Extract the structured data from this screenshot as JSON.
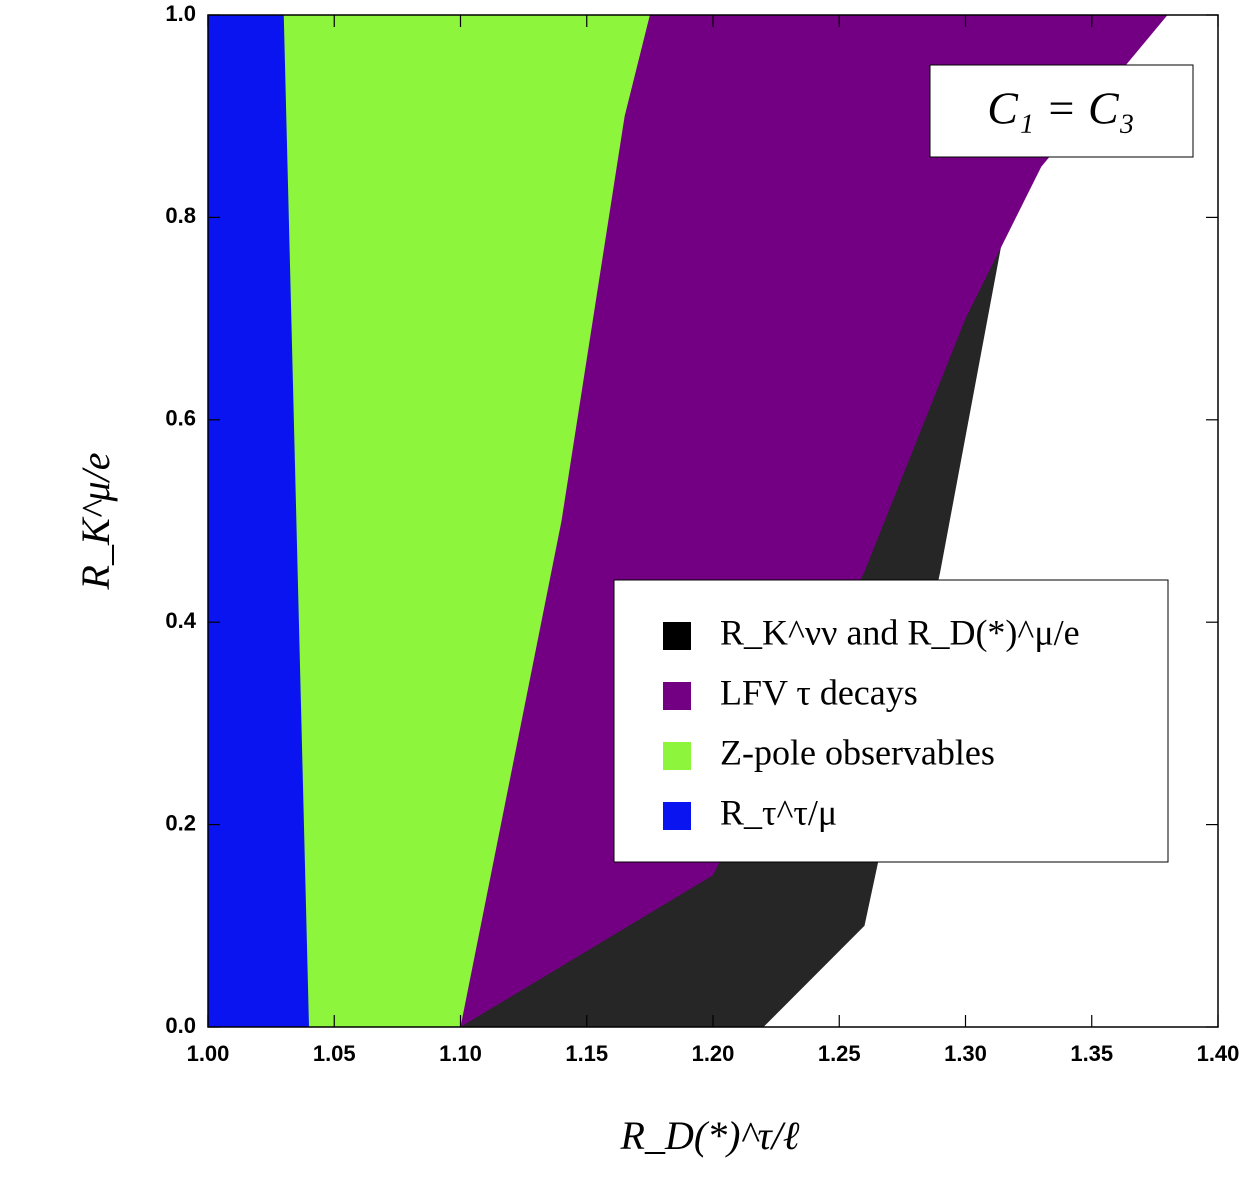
{
  "chart_data": {
    "type": "scatter",
    "xlabel": "R_D(*)^τ/ℓ",
    "ylabel": "R_K^μ/e",
    "annotation": "C₁ = C₃",
    "xlim": [
      1.0,
      1.4
    ],
    "ylim": [
      0.0,
      1.0
    ],
    "xticks": [
      {
        "value": 1.0,
        "label": "1.00"
      },
      {
        "value": 1.05,
        "label": "1.05"
      },
      {
        "value": 1.1,
        "label": "1.10"
      },
      {
        "value": 1.15,
        "label": "1.15"
      },
      {
        "value": 1.2,
        "label": "1.20"
      },
      {
        "value": 1.25,
        "label": "1.25"
      },
      {
        "value": 1.3,
        "label": "1.30"
      },
      {
        "value": 1.35,
        "label": "1.35"
      },
      {
        "value": 1.4,
        "label": "1.40"
      }
    ],
    "yticks": [
      {
        "value": 0.0,
        "label": "0.0"
      },
      0.2,
      0.4,
      0.6,
      0.8,
      {
        "value": 1.0,
        "label": "1.0"
      }
    ],
    "legend": "center right",
    "series": [
      {
        "name": "R_K^νν and R_D(*)^μ/e",
        "color": "#000000",
        "x": [
          1.1,
          1.22,
          1.26,
          1.29,
          1.32,
          1.37,
          1.17
        ],
        "values": [
          0.0,
          0.0,
          0.1,
          0.45,
          0.85,
          1.0,
          1.0
        ]
      },
      {
        "name": "LFV τ decays",
        "color": "#730083",
        "x": [
          1.04,
          1.1,
          1.2,
          1.26,
          1.3,
          1.33,
          1.38,
          1.04
        ],
        "values": [
          0.0,
          0.0,
          0.15,
          0.45,
          0.7,
          0.85,
          1.0,
          1.0
        ]
      },
      {
        "name": "Z-pole observables",
        "color": "#8cf53c",
        "x": [
          1.0,
          1.1,
          1.14,
          1.165,
          1.175,
          1.0
        ],
        "values": [
          0.0,
          0.0,
          0.5,
          0.9,
          1.0,
          1.0
        ]
      },
      {
        "name": "R_τ^τ/μ",
        "color": "#0a14f0",
        "x": [
          1.0,
          1.04,
          1.035,
          1.03,
          1.0
        ],
        "values": [
          0.0,
          0.0,
          0.5,
          1.0,
          1.0
        ]
      }
    ]
  }
}
